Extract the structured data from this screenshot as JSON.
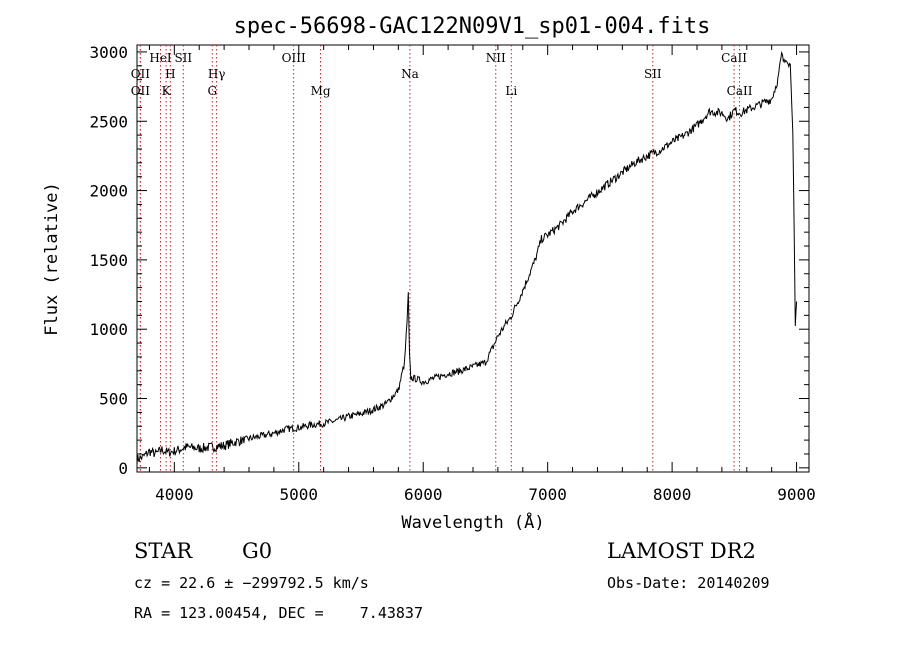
{
  "chart_data": {
    "type": "line",
    "title": "spec-56698-GAC122N09V1_sp01-004.fits",
    "xlabel": "Wavelength (Å)",
    "ylabel": "Flux (relative)",
    "xlim": [
      3700,
      9100
    ],
    "ylim": [
      -30,
      3050
    ],
    "xticks": [
      4000,
      5000,
      6000,
      7000,
      8000,
      9000
    ],
    "yticks": [
      0,
      500,
      1000,
      1500,
      2000,
      2500,
      3000
    ],
    "grid": false,
    "series": [
      {
        "x": [
          3700,
          3750,
          3800,
          3850,
          3900,
          3950,
          4000,
          4100,
          4200,
          4300,
          4400,
          4500,
          4600,
          4700,
          4800,
          4900,
          5000,
          5100,
          5200,
          5300,
          5400,
          5500,
          5600,
          5700,
          5800,
          5850,
          5870,
          5880,
          5890,
          5900,
          5950,
          6000,
          6100,
          6200,
          6300,
          6400,
          6500,
          6550,
          6600,
          6650,
          6700,
          6800,
          6900,
          6950,
          7000,
          7100,
          7200,
          7300,
          7400,
          7500,
          7600,
          7700,
          7800,
          7900,
          8000,
          8100,
          8200,
          8300,
          8400,
          8450,
          8500,
          8550,
          8600,
          8650,
          8700,
          8750,
          8800,
          8850,
          8880,
          8900,
          8920,
          8950,
          8970,
          8990,
          9000
        ],
        "y": [
          60,
          80,
          120,
          100,
          130,
          110,
          120,
          150,
          140,
          150,
          160,
          190,
          210,
          230,
          250,
          280,
          290,
          310,
          320,
          340,
          370,
          390,
          420,
          460,
          560,
          760,
          1050,
          1250,
          800,
          650,
          640,
          620,
          650,
          680,
          700,
          730,
          760,
          850,
          950,
          1020,
          1080,
          1280,
          1500,
          1650,
          1680,
          1750,
          1850,
          1920,
          1990,
          2060,
          2130,
          2200,
          2250,
          2290,
          2350,
          2400,
          2470,
          2570,
          2560,
          2520,
          2580,
          2560,
          2580,
          2600,
          2620,
          2640,
          2660,
          2800,
          2980,
          2920,
          2960,
          2900,
          2450,
          1000,
          1200
        ]
      }
    ],
    "line_marks": [
      {
        "label": "OII",
        "x": 3727,
        "row": 2
      },
      {
        "label": "OII",
        "x": 3727,
        "row": 3
      },
      {
        "label": "HeI",
        "x": 3889,
        "row": 1
      },
      {
        "label": "H",
        "x": 3968,
        "row": 2
      },
      {
        "label": "K",
        "x": 3934,
        "row": 3
      },
      {
        "label": "SII",
        "x": 4072,
        "row": 1
      },
      {
        "label": "Hγ",
        "x": 4340,
        "row": 2
      },
      {
        "label": "G",
        "x": 4305,
        "row": 3
      },
      {
        "label": "OIII",
        "x": 4959,
        "row": 1
      },
      {
        "label": "Mg",
        "x": 5175,
        "row": 3
      },
      {
        "label": "Na",
        "x": 5893,
        "row": 2
      },
      {
        "label": "NII",
        "x": 6583,
        "row": 1
      },
      {
        "label": "Li",
        "x": 6708,
        "row": 3
      },
      {
        "label": "SII",
        "x": 7845,
        "row": 2
      },
      {
        "label": "CaII",
        "x": 8498,
        "row": 1
      },
      {
        "label": "CaII",
        "x": 8542,
        "row": 3
      }
    ],
    "line_colors": {
      "spectrum": "#000000",
      "marker": "#b4282a"
    }
  },
  "info": {
    "object_class": "STAR",
    "subclass": "G0",
    "survey": "LAMOST DR2",
    "redshift": "cz = 22.6 ± −299792.5 km/s",
    "obs_date": "Obs-Date: 20140209",
    "coordinates": "RA = 123.00454, DEC =    7.43837"
  }
}
